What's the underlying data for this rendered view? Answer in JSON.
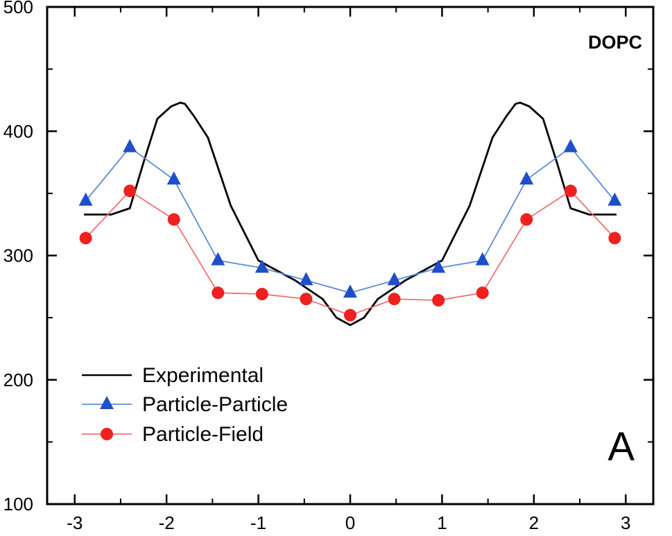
{
  "chart_data": {
    "type": "line",
    "title": "",
    "xlabel": "",
    "ylabel": "",
    "xlim": [
      -3.3,
      3.3
    ],
    "ylim": [
      100,
      500
    ],
    "xticks": [
      -3,
      -2,
      -1,
      0,
      1,
      2,
      3
    ],
    "yticks": [
      100,
      200,
      300,
      400,
      500
    ],
    "xtick_labels": [
      "-3",
      "-2",
      "-1",
      "0",
      "1",
      "2",
      "3"
    ],
    "ytick_labels": [
      "100",
      "200",
      "300",
      "400",
      "500"
    ],
    "grid": false,
    "legend_position": "bottom-left",
    "annotations": [
      {
        "text": "DOPC",
        "position": "top-right",
        "style": "bold"
      },
      {
        "text": "A",
        "position": "bottom-right",
        "style": "large"
      }
    ],
    "series": [
      {
        "name": "Experimental",
        "style": "line",
        "color": "#000000",
        "x": [
          -2.9,
          -2.6,
          -2.4,
          -2.25,
          -2.1,
          -1.95,
          -1.85,
          -1.8,
          -1.7,
          -1.55,
          -1.3,
          -1.0,
          -0.6,
          -0.3,
          -0.15,
          0,
          0.15,
          0.3,
          0.6,
          1.0,
          1.3,
          1.55,
          1.7,
          1.8,
          1.85,
          1.95,
          2.1,
          2.25,
          2.4,
          2.6,
          2.9
        ],
        "y": [
          333,
          333,
          338,
          375,
          410,
          420,
          423,
          422,
          412,
          395,
          340,
          296,
          280,
          265,
          250,
          244,
          250,
          265,
          280,
          296,
          340,
          395,
          412,
          422,
          423,
          420,
          410,
          375,
          338,
          333,
          333
        ]
      },
      {
        "name": "Particle-Particle",
        "style": "line-marker",
        "marker": "triangle",
        "color": "#1f4fc8",
        "line_color": "#5b8bd8",
        "x": [
          -2.88,
          -2.4,
          -1.92,
          -1.44,
          -0.96,
          -0.48,
          0,
          0.48,
          0.96,
          1.44,
          1.92,
          2.4,
          2.88
        ],
        "y": [
          344,
          387,
          361,
          296,
          290,
          280,
          270,
          280,
          290,
          296,
          361,
          387,
          344
        ]
      },
      {
        "name": "Particle-Field",
        "style": "line-marker",
        "marker": "circle",
        "color": "#ee2020",
        "line_color": "#f07070",
        "x": [
          -2.88,
          -2.4,
          -1.92,
          -1.44,
          -0.96,
          -0.48,
          0,
          0.48,
          0.96,
          1.44,
          1.92,
          2.4,
          2.88
        ],
        "y": [
          314,
          352,
          329,
          270,
          269,
          265,
          252,
          265,
          264,
          270,
          329,
          352,
          314
        ]
      }
    ]
  }
}
